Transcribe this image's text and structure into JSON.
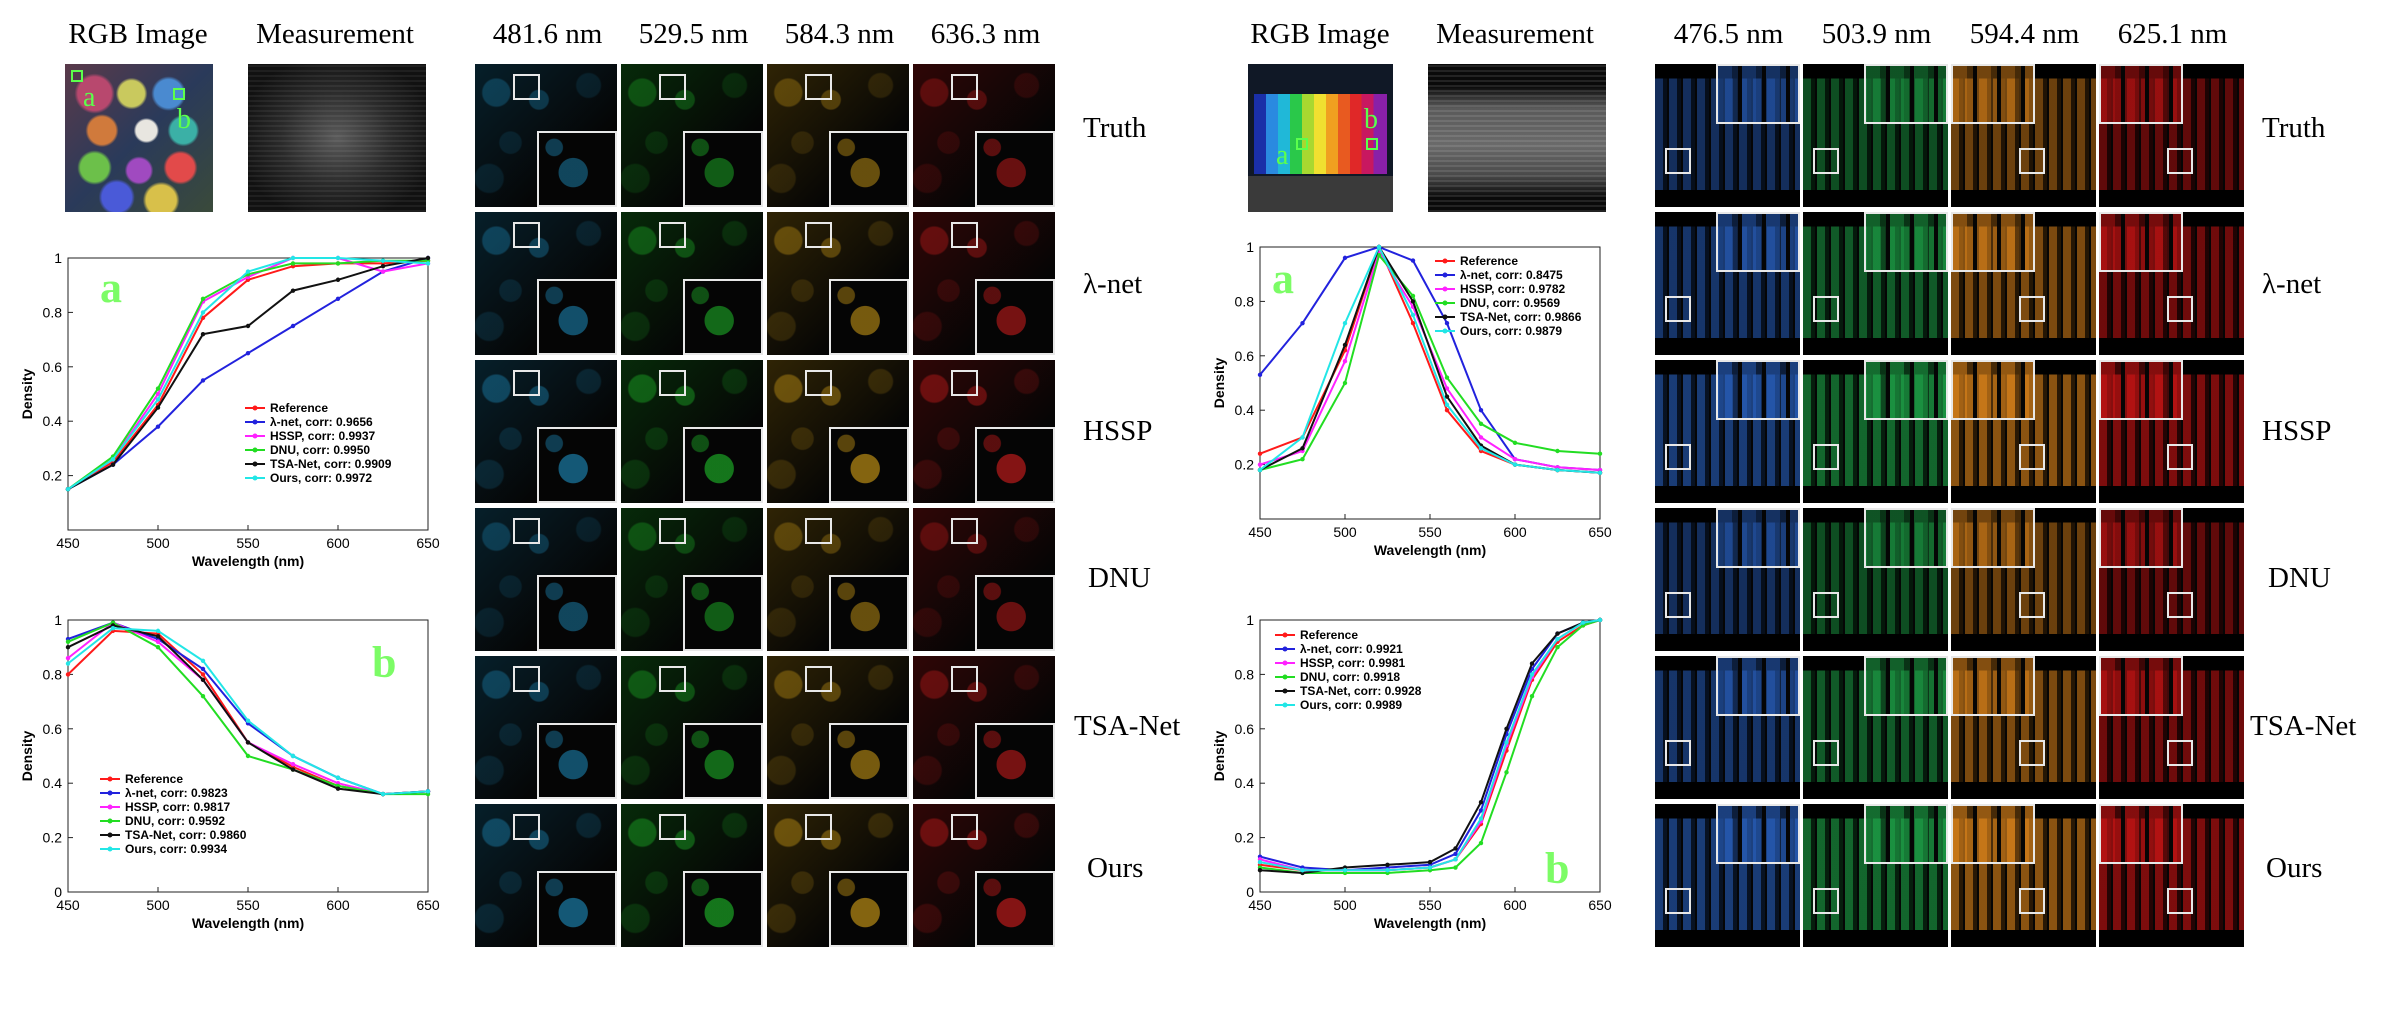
{
  "left": {
    "headers": {
      "rgb": "RGB Image",
      "measurement": "Measurement",
      "bands": [
        "481.6 nm",
        "529.5 nm",
        "584.3 nm",
        "636.3 nm"
      ]
    },
    "marker_labels": [
      "a",
      "b"
    ],
    "rows": [
      "Truth",
      "λ-net",
      "HSSP",
      "DNU",
      "TSA-Net",
      "Ours"
    ],
    "band_colors": [
      "#1e8fc0",
      "#1fbf2a",
      "#d7a317",
      "#d81d1d"
    ],
    "chart_a": {
      "letter": "a",
      "xlabel": "Wavelength (nm)",
      "ylabel": "Density",
      "xlim": [
        450,
        650
      ],
      "ylim": [
        0,
        1
      ],
      "xticks": [
        "450",
        "500",
        "550",
        "600",
        "650"
      ],
      "yticks": [
        "0.2",
        "0.4",
        "0.6",
        "0.8",
        "1"
      ],
      "legend": [
        "Reference",
        "λ-net, corr: 0.9656",
        "HSSP, corr: 0.9937",
        "DNU, corr: 0.9950",
        "TSA-Net, corr: 0.9909",
        "Ours, corr: 0.9972"
      ]
    },
    "chart_b": {
      "letter": "b",
      "xlabel": "Wavelength (nm)",
      "ylabel": "Density",
      "xlim": [
        450,
        650
      ],
      "ylim": [
        0,
        1
      ],
      "xticks": [
        "450",
        "500",
        "550",
        "600",
        "650"
      ],
      "yticks": [
        "0",
        "0.2",
        "0.4",
        "0.6",
        "0.8",
        "1"
      ],
      "legend": [
        "Reference",
        "λ-net, corr: 0.9823",
        "HSSP, corr: 0.9817",
        "DNU, corr: 0.9592",
        "TSA-Net, corr: 0.9860",
        "Ours, corr: 0.9934"
      ]
    }
  },
  "right": {
    "headers": {
      "rgb": "RGB Image",
      "measurement": "Measurement",
      "bands": [
        "476.5 nm",
        "503.9 nm",
        "594.4 nm",
        "625.1 nm"
      ]
    },
    "marker_labels": [
      "a",
      "b"
    ],
    "rows": [
      "Truth",
      "λ-net",
      "HSSP",
      "DNU",
      "TSA-Net",
      "Ours"
    ],
    "band_colors": [
      "#2a63c4",
      "#1fa84a",
      "#e68a1c",
      "#cf1515"
    ],
    "chart_a": {
      "letter": "a",
      "xlabel": "Wavelength (nm)",
      "ylabel": "Density",
      "xlim": [
        450,
        650
      ],
      "ylim": [
        0,
        1
      ],
      "xticks": [
        "450",
        "500",
        "550",
        "600",
        "650"
      ],
      "yticks": [
        "0.2",
        "0.4",
        "0.6",
        "0.8",
        "1"
      ],
      "legend": [
        "Reference",
        "λ-net, corr: 0.8475",
        "HSSP, corr: 0.9782",
        "DNU, corr: 0.9569",
        "TSA-Net, corr: 0.9866",
        "Ours, corr: 0.9879"
      ]
    },
    "chart_b": {
      "letter": "b",
      "xlabel": "Wavelength (nm)",
      "ylabel": "Density",
      "xlim": [
        450,
        650
      ],
      "ylim": [
        0,
        1
      ],
      "xticks": [
        "450",
        "500",
        "550",
        "600",
        "650"
      ],
      "yticks": [
        "0",
        "0.2",
        "0.4",
        "0.6",
        "0.8",
        "1"
      ],
      "legend": [
        "Reference",
        "λ-net, corr: 0.9921",
        "HSSP, corr: 0.9981",
        "DNU, corr: 0.9918",
        "TSA-Net, corr: 0.9928",
        "Ours, corr: 0.9989"
      ]
    }
  },
  "series_colors": [
    "#ff1a1a",
    "#2222dd",
    "#ff22ff",
    "#22dd22",
    "#111111",
    "#22e6e6"
  ],
  "chart_data": [
    {
      "type": "line",
      "xlabel": "Wavelength (nm)",
      "ylabel": "Density",
      "xlim": [
        450,
        650
      ],
      "ylim": [
        0,
        1
      ],
      "x": [
        450,
        475,
        500,
        525,
        550,
        575,
        600,
        625,
        650
      ],
      "series": [
        {
          "name": "Reference",
          "values": [
            0.15,
            0.25,
            0.46,
            0.78,
            0.92,
            0.97,
            0.98,
            0.98,
            0.99
          ]
        },
        {
          "name": "λ-net, corr: 0.9656",
          "values": [
            0.15,
            0.24,
            0.38,
            0.55,
            0.65,
            0.75,
            0.85,
            0.95,
            1.0
          ]
        },
        {
          "name": "HSSP, corr: 0.9937",
          "values": [
            0.15,
            0.26,
            0.5,
            0.84,
            0.93,
            1.0,
            1.0,
            0.95,
            0.98
          ]
        },
        {
          "name": "DNU, corr: 0.9950",
          "values": [
            0.15,
            0.27,
            0.52,
            0.85,
            0.94,
            0.98,
            0.98,
            0.99,
            0.99
          ]
        },
        {
          "name": "TSA-Net, corr: 0.9909",
          "values": [
            0.15,
            0.24,
            0.45,
            0.72,
            0.75,
            0.88,
            0.92,
            0.97,
            1.0
          ]
        },
        {
          "name": "Ours, corr: 0.9972",
          "values": [
            0.15,
            0.26,
            0.48,
            0.8,
            0.95,
            1.0,
            1.0,
            0.99,
            0.98
          ]
        }
      ]
    },
    {
      "type": "line",
      "xlabel": "Wavelength (nm)",
      "ylabel": "Density",
      "xlim": [
        450,
        650
      ],
      "ylim": [
        0,
        1
      ],
      "x": [
        450,
        475,
        500,
        525,
        550,
        575,
        600,
        625,
        650
      ],
      "series": [
        {
          "name": "Reference",
          "values": [
            0.8,
            0.96,
            0.95,
            0.8,
            0.55,
            0.46,
            0.39,
            0.36,
            0.37
          ]
        },
        {
          "name": "λ-net, corr: 0.9823",
          "values": [
            0.93,
            0.99,
            0.93,
            0.82,
            0.62,
            0.5,
            0.42,
            0.36,
            0.37
          ]
        },
        {
          "name": "HSSP, corr: 0.9817",
          "values": [
            0.86,
            0.99,
            0.92,
            0.78,
            0.55,
            0.47,
            0.4,
            0.36,
            0.37
          ]
        },
        {
          "name": "DNU, corr: 0.9592",
          "values": [
            0.92,
            0.99,
            0.9,
            0.72,
            0.5,
            0.45,
            0.39,
            0.36,
            0.36
          ]
        },
        {
          "name": "TSA-Net, corr: 0.9860",
          "values": [
            0.9,
            0.98,
            0.94,
            0.78,
            0.55,
            0.45,
            0.38,
            0.36,
            0.37
          ]
        },
        {
          "name": "Ours, corr: 0.9934",
          "values": [
            0.84,
            0.97,
            0.96,
            0.85,
            0.63,
            0.5,
            0.42,
            0.36,
            0.37
          ]
        }
      ]
    },
    {
      "type": "line",
      "xlabel": "Wavelength (nm)",
      "ylabel": "Density",
      "xlim": [
        450,
        650
      ],
      "ylim": [
        0,
        1
      ],
      "x": [
        450,
        475,
        500,
        520,
        540,
        560,
        580,
        600,
        625,
        650
      ],
      "series": [
        {
          "name": "Reference",
          "values": [
            0.24,
            0.3,
            0.62,
            1.0,
            0.72,
            0.4,
            0.25,
            0.2,
            0.18,
            0.17
          ]
        },
        {
          "name": "λ-net, corr: 0.8475",
          "values": [
            0.53,
            0.72,
            0.96,
            1.0,
            0.95,
            0.72,
            0.4,
            0.22,
            0.19,
            0.18
          ]
        },
        {
          "name": "HSSP, corr: 0.9782",
          "values": [
            0.2,
            0.25,
            0.58,
            0.98,
            0.78,
            0.48,
            0.3,
            0.22,
            0.19,
            0.18
          ]
        },
        {
          "name": "DNU, corr: 0.9569",
          "values": [
            0.18,
            0.22,
            0.5,
            0.97,
            0.82,
            0.52,
            0.35,
            0.28,
            0.25,
            0.24
          ]
        },
        {
          "name": "TSA-Net, corr: 0.9866",
          "values": [
            0.18,
            0.26,
            0.64,
            1.0,
            0.8,
            0.45,
            0.27,
            0.2,
            0.18,
            0.17
          ]
        },
        {
          "name": "Ours, corr: 0.9879",
          "values": [
            0.18,
            0.3,
            0.72,
            1.0,
            0.75,
            0.42,
            0.26,
            0.2,
            0.18,
            0.17
          ]
        }
      ]
    },
    {
      "type": "line",
      "xlabel": "Wavelength (nm)",
      "ylabel": "Density",
      "xlim": [
        450,
        650
      ],
      "ylim": [
        0,
        1
      ],
      "x": [
        450,
        475,
        500,
        525,
        550,
        565,
        580,
        595,
        610,
        625,
        640,
        650
      ],
      "series": [
        {
          "name": "Reference",
          "values": [
            0.1,
            0.08,
            0.08,
            0.08,
            0.09,
            0.12,
            0.25,
            0.52,
            0.78,
            0.92,
            0.98,
            1.0
          ]
        },
        {
          "name": "λ-net, corr: 0.9921",
          "values": [
            0.13,
            0.09,
            0.08,
            0.09,
            0.1,
            0.14,
            0.3,
            0.58,
            0.82,
            0.95,
            0.99,
            1.0
          ]
        },
        {
          "name": "HSSP, corr: 0.9981",
          "values": [
            0.12,
            0.08,
            0.08,
            0.08,
            0.09,
            0.12,
            0.26,
            0.54,
            0.79,
            0.93,
            0.99,
            1.0
          ]
        },
        {
          "name": "DNU, corr: 0.9918",
          "values": [
            0.09,
            0.07,
            0.07,
            0.07,
            0.08,
            0.09,
            0.18,
            0.44,
            0.72,
            0.9,
            0.98,
            1.0
          ]
        },
        {
          "name": "TSA-Net, corr: 0.9928",
          "values": [
            0.08,
            0.07,
            0.09,
            0.1,
            0.11,
            0.16,
            0.33,
            0.6,
            0.84,
            0.95,
            0.99,
            1.0
          ]
        },
        {
          "name": "Ours, corr: 0.9989",
          "values": [
            0.11,
            0.08,
            0.08,
            0.08,
            0.09,
            0.12,
            0.27,
            0.55,
            0.8,
            0.93,
            0.99,
            1.0
          ]
        }
      ]
    }
  ]
}
